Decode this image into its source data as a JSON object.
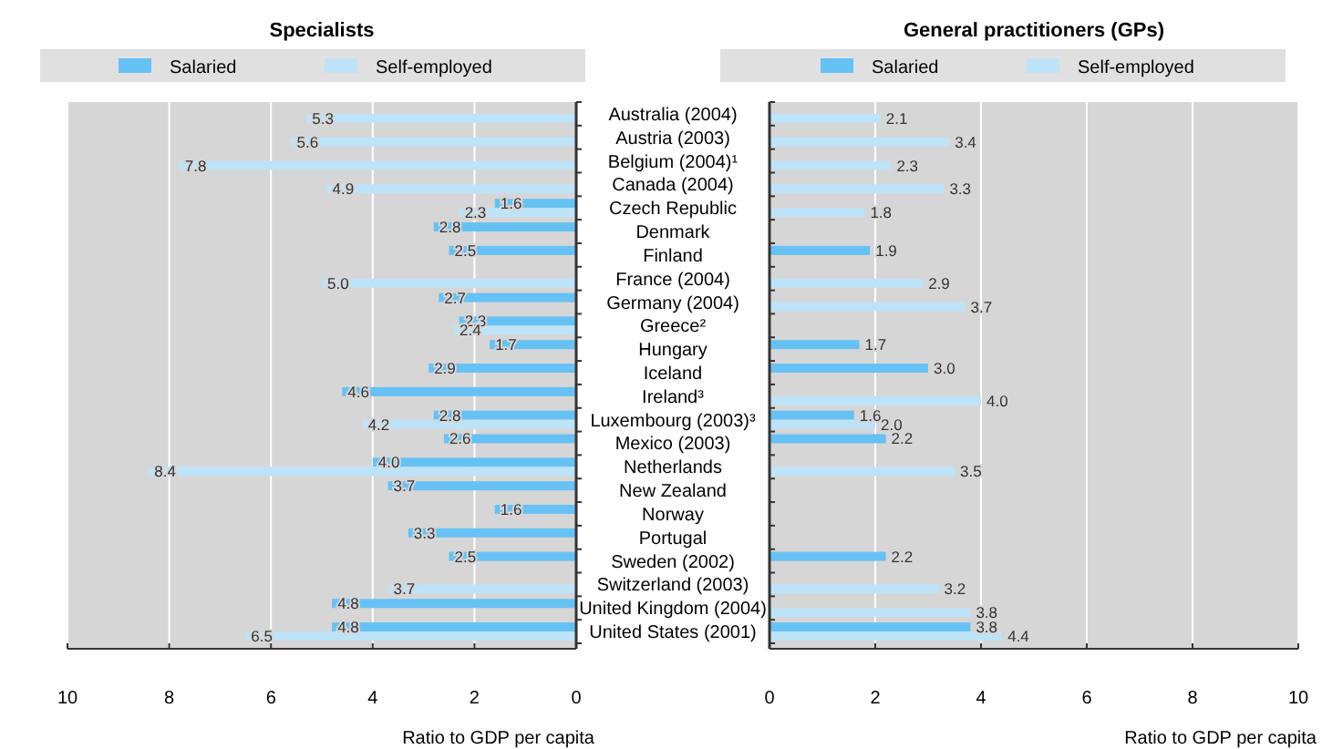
{
  "chart_data": [
    {
      "type": "bar",
      "orientation": "horizontal",
      "title": "Specialists",
      "xlabel": "Ratio to GDP per capita",
      "categories": [
        "Australia (2004)",
        "Austria (2003)",
        "Belgium (2004)¹",
        "Canada (2004)",
        "Czech Republic",
        "Denmark",
        "Finland",
        "France (2004)",
        "Germany (2004)",
        "Greece²",
        "Hungary",
        "Iceland",
        "Ireland³",
        "Luxembourg (2003)³",
        "Mexico (2003)",
        "Netherlands",
        "New Zealand",
        "Norway",
        "Portugal",
        "Sweden (2002)",
        "Switzerland (2003)",
        "United Kingdom (2004)",
        "United States (2001)"
      ],
      "series": [
        {
          "name": "Salaried",
          "color": "#66c2f5",
          "values": [
            null,
            null,
            null,
            null,
            1.6,
            2.8,
            2.5,
            null,
            2.7,
            2.3,
            1.7,
            2.9,
            4.6,
            2.8,
            2.6,
            4.0,
            3.7,
            1.6,
            3.3,
            2.5,
            null,
            4.8,
            4.8
          ],
          "value_labels": [
            null,
            null,
            null,
            null,
            "1.6",
            "2.8",
            "2.5",
            null,
            "2.7",
            "2.3",
            "1.7",
            "2.9",
            "4.6",
            "2.8",
            "2.6",
            "4.0",
            "3.7",
            "1.6",
            "3.3",
            "2.5",
            null,
            "4.8",
            "4.8"
          ]
        },
        {
          "name": "Self-employed",
          "color": "#bde3f8",
          "values": [
            5.3,
            5.6,
            7.8,
            4.9,
            2.3,
            null,
            null,
            5.0,
            null,
            2.4,
            null,
            null,
            null,
            4.2,
            null,
            8.4,
            null,
            null,
            null,
            null,
            3.7,
            null,
            6.5
          ],
          "value_labels": [
            "5.3",
            "5.6",
            "7.8",
            "4.9",
            "2.3",
            null,
            null,
            "5.0",
            null,
            "2.4",
            null,
            null,
            null,
            "4.2",
            null,
            "8.4",
            null,
            null,
            null,
            null,
            "3.7",
            null,
            "6.5"
          ]
        }
      ],
      "xlim": [
        10,
        0
      ],
      "xticks": [
        10,
        8,
        6,
        4,
        2,
        0
      ],
      "grid": "x",
      "legend": "top"
    },
    {
      "type": "bar",
      "orientation": "horizontal",
      "title": "General practitioners (GPs)",
      "xlabel": "Ratio to GDP per capita",
      "categories": [
        "Australia (2004)",
        "Austria (2003)",
        "Belgium (2004)¹",
        "Canada (2004)",
        "Czech Republic",
        "Denmark",
        "Finland",
        "France (2004)",
        "Germany (2004)",
        "Greece²",
        "Hungary",
        "Iceland",
        "Ireland³",
        "Luxembourg (2003)³",
        "Mexico (2003)",
        "Netherlands",
        "New Zealand",
        "Norway",
        "Portugal",
        "Sweden (2002)",
        "Switzerland (2003)",
        "United Kingdom (2004)",
        "United States (2001)"
      ],
      "series": [
        {
          "name": "Salaried",
          "color": "#66c2f5",
          "values": [
            null,
            null,
            null,
            null,
            null,
            null,
            1.9,
            null,
            null,
            null,
            1.7,
            3.0,
            null,
            1.6,
            2.2,
            null,
            null,
            null,
            null,
            2.2,
            null,
            null,
            3.8
          ],
          "value_labels": [
            null,
            null,
            null,
            null,
            null,
            null,
            "1.9",
            null,
            null,
            null,
            "1.7",
            "3.0",
            null,
            "1.6",
            "2.2",
            null,
            null,
            null,
            null,
            "2.2",
            null,
            null,
            "3.8"
          ]
        },
        {
          "name": "Self-employed",
          "color": "#bde3f8",
          "values": [
            2.1,
            3.4,
            2.3,
            3.3,
            1.8,
            null,
            null,
            2.9,
            3.7,
            null,
            null,
            null,
            4.0,
            2.0,
            null,
            3.5,
            null,
            null,
            null,
            null,
            3.2,
            3.8,
            4.4
          ],
          "value_labels": [
            "2.1",
            "3.4",
            "2.3",
            "3.3",
            "1.8",
            null,
            null,
            "2.9",
            "3.7",
            null,
            null,
            null,
            "4.0",
            "2.0",
            null,
            "3.5",
            null,
            null,
            null,
            null,
            "3.2",
            "3.8",
            "4.4"
          ]
        }
      ],
      "xlim": [
        0,
        10
      ],
      "xticks": [
        0,
        2,
        4,
        6,
        8,
        10
      ],
      "grid": "x",
      "legend": "top",
      "tick_labels": "x"
    }
  ]
}
